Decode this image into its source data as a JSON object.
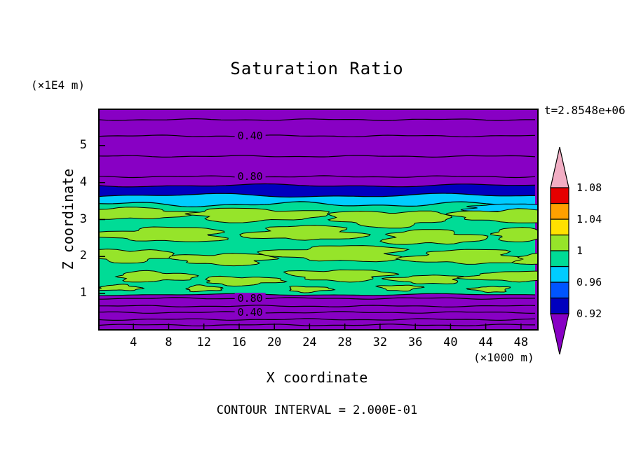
{
  "title": "Saturation Ratio",
  "time_label": "t=2.8548e+06",
  "footer": "CONTOUR INTERVAL = 2.000E-01",
  "axes": {
    "x_label": "X coordinate",
    "x_units": "(×1000 m)",
    "y_label": "Z coordinate",
    "y_units": "(×1E4 m)",
    "x_ticks": [
      4,
      8,
      12,
      16,
      20,
      24,
      28,
      32,
      36,
      40,
      44,
      48
    ],
    "y_ticks": [
      1,
      2,
      3,
      4,
      5
    ],
    "x_range": [
      0,
      50
    ],
    "y_range": [
      0,
      6
    ]
  },
  "chart_data": {
    "type": "heatmap",
    "subtype": "filled-contour",
    "title": "Saturation Ratio",
    "xlabel": "X coordinate (×1000 m)",
    "ylabel": "Z coordinate (×1E4 m)",
    "time": "t=2.8548e+06",
    "contour_interval": "2.000E-01",
    "x_range": [
      0,
      50
    ],
    "z_range": [
      0,
      6
    ],
    "colors": {
      "purple": "#8800C4",
      "dark_blue": "#0000BE",
      "blue": "#0055FF",
      "cyan": "#00CCFF",
      "turquoise": "#00DC96",
      "green_yellow": "#96E42A",
      "yellow": "#FFE100",
      "orange": "#FFA000",
      "red": "#E60000",
      "pink": "#F2AEC4",
      "line": "#000000"
    },
    "colorbar": {
      "labels": [
        "1.08",
        "1.04",
        "1",
        "0.96",
        "0.92"
      ],
      "levels": [
        0.92,
        0.94,
        0.96,
        0.98,
        1.0,
        1.02,
        1.04,
        1.06,
        1.08
      ],
      "segment_colors": [
        "#0000BE",
        "#0055FF",
        "#00CCFF",
        "#00DC96",
        "#96E42A",
        "#FFE100",
        "#FFA000",
        "#E60000"
      ],
      "below_color": "#8800C4",
      "above_color": "#F2AEC4"
    },
    "bands": [
      {
        "z_top": 6.0,
        "z_bottom": 3.92,
        "value": "S < 0.9",
        "color_key": "purple"
      },
      {
        "z_top": 3.92,
        "z_bottom": 3.65,
        "value": "0.92-0.94",
        "color_key": "dark_blue"
      },
      {
        "z_top": 3.65,
        "z_bottom": 3.41,
        "value": "0.94-0.98",
        "color_key": "cyan"
      },
      {
        "z_top": 3.41,
        "z_bottom": 0.97,
        "value": "0.98-1.02",
        "color_key": "turquoise"
      },
      {
        "z_top": 0.97,
        "z_bottom": 0.0,
        "value": "S < 0.9",
        "color_key": "purple"
      }
    ],
    "contour_lines_upper": [
      {
        "value": 0.2,
        "z": 5.7
      },
      {
        "value": 0.4,
        "z": 5.26,
        "label": "0.40"
      },
      {
        "value": 0.6,
        "z": 4.71
      },
      {
        "value": 0.8,
        "z": 4.16,
        "label": "0.80"
      }
    ],
    "contour_lines_lower": [
      {
        "value": 0.8,
        "z": 0.87,
        "label": "0.80"
      },
      {
        "value": 0.6,
        "z": 0.66
      },
      {
        "value": 0.4,
        "z": 0.49,
        "label": "0.40"
      },
      {
        "value": 0.2,
        "z": 0.3
      },
      {
        "value": 0.0,
        "z": 0.15
      }
    ],
    "label_x_frac": 0.345,
    "patch_value": "1.00-1.02",
    "patch_hints": [
      [
        55,
        150,
        75,
        8,
        1
      ],
      [
        225,
        152,
        95,
        9,
        2
      ],
      [
        415,
        157,
        85,
        11,
        3
      ],
      [
        585,
        153,
        75,
        9,
        4
      ],
      [
        95,
        180,
        90,
        10,
        5
      ],
      [
        295,
        178,
        80,
        10,
        6
      ],
      [
        475,
        184,
        70,
        10,
        7
      ],
      [
        615,
        180,
        55,
        9,
        8
      ],
      [
        45,
        210,
        60,
        9,
        9
      ],
      [
        180,
        215,
        70,
        8,
        10
      ],
      [
        345,
        207,
        95,
        11,
        11
      ],
      [
        525,
        212,
        80,
        10,
        12
      ],
      [
        640,
        215,
        45,
        8,
        13
      ],
      [
        80,
        240,
        55,
        7,
        14
      ],
      [
        205,
        246,
        55,
        6,
        15
      ],
      [
        345,
        238,
        70,
        8,
        16
      ],
      [
        470,
        244,
        50,
        6,
        17
      ],
      [
        590,
        240,
        60,
        7,
        18
      ],
      [
        30,
        256,
        30,
        4,
        19
      ],
      [
        150,
        257,
        25,
        4,
        20
      ],
      [
        300,
        258,
        30,
        4,
        21
      ],
      [
        430,
        256,
        28,
        4,
        22
      ],
      [
        560,
        258,
        26,
        4,
        23
      ]
    ],
    "field_summary": "Saturated cloud layer between z≈1.0 and z≈3.9 (×1E4 m): thin dark-blue (≈0.92) and cyan (≈0.96) layers at cloud top, broad turquoise region near saturation ratio 1 with irregular green-yellow patches slightly above 1; subsaturated purple air above and below with horizontal contour lines at 0.2 intervals (labels 0.40 and 0.80)."
  }
}
